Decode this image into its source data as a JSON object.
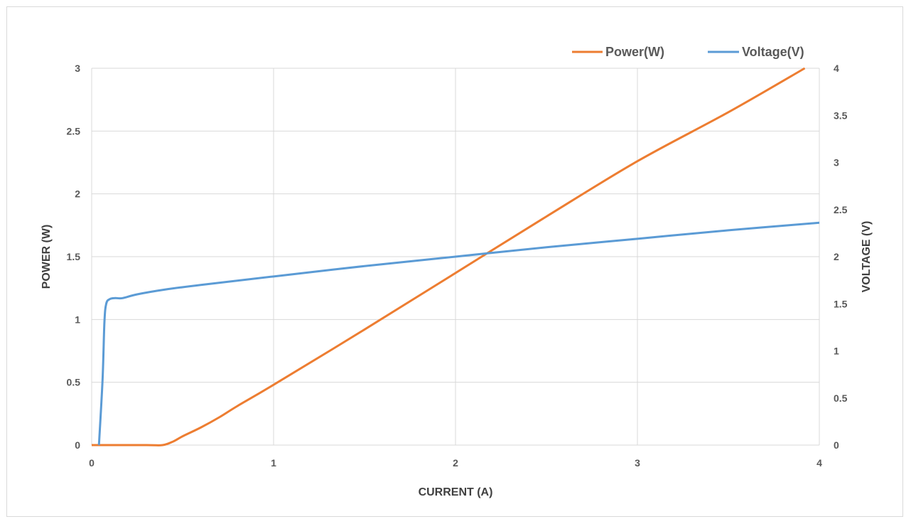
{
  "chart_data": {
    "type": "line",
    "title": "",
    "xlabel": "CURRENT (A)",
    "ylabel_left": "POWER (W)",
    "ylabel_right": "VOLTAGE (V)",
    "xlim": [
      0,
      4
    ],
    "ylim_left": [
      0,
      3
    ],
    "ylim_right": [
      0,
      4
    ],
    "x_ticks": [
      "0",
      "1",
      "2",
      "3",
      "4"
    ],
    "y_left_ticks": [
      "0",
      "0.5",
      "1",
      "1.5",
      "2",
      "2.5",
      "3"
    ],
    "y_right_ticks": [
      "0",
      "0.5",
      "1",
      "1.5",
      "2",
      "2.5",
      "3",
      "3.5",
      "4"
    ],
    "grid": true,
    "legend_position": "top-right",
    "series": [
      {
        "name": "Power(W)",
        "axis": "left",
        "color": "#ed7d31",
        "points": [
          [
            0,
            0
          ],
          [
            0.3,
            0
          ],
          [
            0.39,
            0
          ],
          [
            0.45,
            0.03
          ],
          [
            0.5,
            0.07
          ],
          [
            0.6,
            0.14
          ],
          [
            0.7,
            0.22
          ],
          [
            0.8,
            0.31
          ],
          [
            1.0,
            0.48
          ],
          [
            1.5,
            0.92
          ],
          [
            2.0,
            1.37
          ],
          [
            2.5,
            1.82
          ],
          [
            3.0,
            2.26
          ],
          [
            3.5,
            2.65
          ],
          [
            3.92,
            3.0
          ]
        ]
      },
      {
        "name": "Voltage(V)",
        "axis": "right",
        "color": "#5b9bd5",
        "points": [
          [
            0.04,
            0
          ],
          [
            0.06,
            0.7
          ],
          [
            0.07,
            1.3
          ],
          [
            0.08,
            1.5
          ],
          [
            0.1,
            1.55
          ],
          [
            0.13,
            1.56
          ],
          [
            0.17,
            1.56
          ],
          [
            0.25,
            1.6
          ],
          [
            0.4,
            1.65
          ],
          [
            0.6,
            1.7
          ],
          [
            1.0,
            1.79
          ],
          [
            1.5,
            1.9
          ],
          [
            2.0,
            2.0
          ],
          [
            2.5,
            2.1
          ],
          [
            3.0,
            2.19
          ],
          [
            3.5,
            2.28
          ],
          [
            4.0,
            2.36
          ]
        ]
      }
    ]
  }
}
